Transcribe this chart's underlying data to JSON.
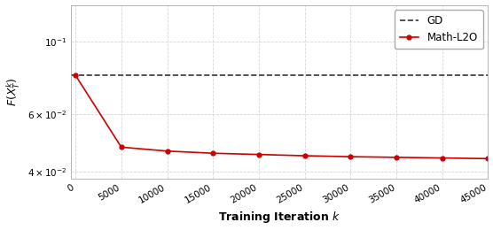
{
  "gd_value": 0.079,
  "math_l2o_x": [
    0,
    5000,
    10000,
    15000,
    20000,
    25000,
    30000,
    35000,
    40000,
    45000
  ],
  "math_l2o_y": [
    0.079,
    0.0475,
    0.0462,
    0.0455,
    0.0451,
    0.0447,
    0.0444,
    0.0442,
    0.044,
    0.0438
  ],
  "gd_color": "#333333",
  "math_l2o_color": "#cc0000",
  "xlabel": "Training Iteration $k$",
  "ylabel": "$F(X_T^k)$",
  "xlim": [
    -500,
    45000
  ],
  "ylim_log": [
    0.038,
    0.13
  ],
  "legend_labels": [
    "GD",
    "Math-L2O"
  ],
  "background_color": "#ffffff",
  "grid_color": "#cccccc"
}
